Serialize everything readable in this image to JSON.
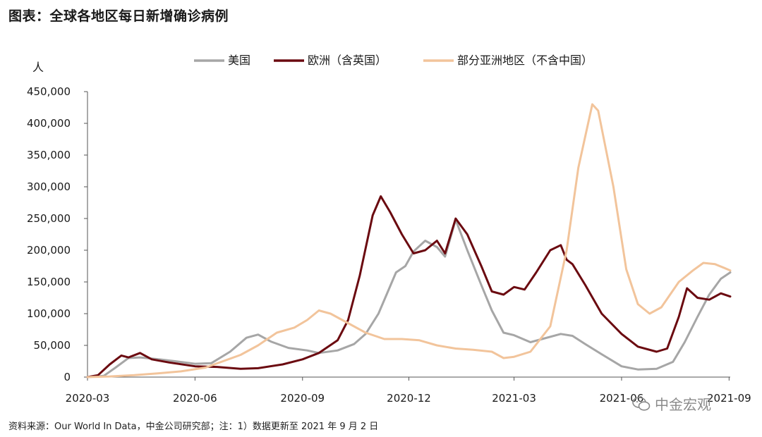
{
  "header": {
    "title": "图表：全球各地区每日新增确诊病例"
  },
  "footer": {
    "source": "资料来源：Our World In Data，中金公司研究部；注：1）数据更新至 2021 年 9 月 2 日"
  },
  "watermark": {
    "text": "中金宏观",
    "icon": "wechat-icon"
  },
  "colors": {
    "us": "#a6a6a6",
    "europe": "#6b0a10",
    "asia": "#f2c49b",
    "axis": "#555555"
  },
  "chart_data": {
    "type": "line",
    "title": "图表：全球各地区每日新增确诊病例",
    "ylabel": "人",
    "xlabel": "",
    "ylim": [
      0,
      450000
    ],
    "xlim": [
      "2020-03",
      "2021-09"
    ],
    "grid": false,
    "legend": "top",
    "x_ticks": [
      "2020-03",
      "2020-06",
      "2020-09",
      "2020-12",
      "2021-03",
      "2021-06",
      "2021-09"
    ],
    "y_ticks": [
      0,
      50000,
      100000,
      150000,
      200000,
      250000,
      300000,
      350000,
      400000,
      450000
    ],
    "y_tick_labels": [
      "0",
      "50,000",
      "100,000",
      "150,000",
      "200,000",
      "250,000",
      "300,000",
      "350,000",
      "400,000",
      "450,000"
    ],
    "series": [
      {
        "name": "美国",
        "color": "#a6a6a6",
        "points": [
          [
            "2020-03-01",
            0
          ],
          [
            "2020-03-15",
            2000
          ],
          [
            "2020-03-25",
            15000
          ],
          [
            "2020-04-05",
            30000
          ],
          [
            "2020-04-15",
            31000
          ],
          [
            "2020-05-01",
            28000
          ],
          [
            "2020-05-15",
            25000
          ],
          [
            "2020-06-01",
            21000
          ],
          [
            "2020-06-15",
            22000
          ],
          [
            "2020-07-01",
            40000
          ],
          [
            "2020-07-15",
            62000
          ],
          [
            "2020-07-25",
            67000
          ],
          [
            "2020-08-05",
            56000
          ],
          [
            "2020-08-20",
            46000
          ],
          [
            "2020-09-05",
            42000
          ],
          [
            "2020-09-15",
            38000
          ],
          [
            "2020-10-01",
            42000
          ],
          [
            "2020-10-15",
            52000
          ],
          [
            "2020-10-25",
            68000
          ],
          [
            "2020-11-05",
            100000
          ],
          [
            "2020-11-20",
            165000
          ],
          [
            "2020-11-28",
            175000
          ],
          [
            "2020-12-05",
            198000
          ],
          [
            "2020-12-15",
            215000
          ],
          [
            "2020-12-25",
            205000
          ],
          [
            "2021-01-01",
            190000
          ],
          [
            "2021-01-10",
            248000
          ],
          [
            "2021-01-20",
            200000
          ],
          [
            "2021-02-01",
            145000
          ],
          [
            "2021-02-10",
            105000
          ],
          [
            "2021-02-20",
            70000
          ],
          [
            "2021-03-01",
            66000
          ],
          [
            "2021-03-15",
            55000
          ],
          [
            "2021-03-25",
            60000
          ],
          [
            "2021-04-10",
            68000
          ],
          [
            "2021-04-20",
            65000
          ],
          [
            "2021-05-01",
            52000
          ],
          [
            "2021-05-15",
            36000
          ],
          [
            "2021-06-01",
            17000
          ],
          [
            "2021-06-15",
            12000
          ],
          [
            "2021-07-01",
            13000
          ],
          [
            "2021-07-15",
            24000
          ],
          [
            "2021-07-25",
            55000
          ],
          [
            "2021-08-05",
            95000
          ],
          [
            "2021-08-15",
            130000
          ],
          [
            "2021-08-25",
            155000
          ],
          [
            "2021-09-02",
            165000
          ]
        ]
      },
      {
        "name": "欧洲（含英国）",
        "color": "#6b0a10",
        "points": [
          [
            "2020-03-01",
            0
          ],
          [
            "2020-03-10",
            3000
          ],
          [
            "2020-03-20",
            20000
          ],
          [
            "2020-03-30",
            34000
          ],
          [
            "2020-04-05",
            31000
          ],
          [
            "2020-04-15",
            38000
          ],
          [
            "2020-04-25",
            28000
          ],
          [
            "2020-05-10",
            23000
          ],
          [
            "2020-06-01",
            17000
          ],
          [
            "2020-06-20",
            16000
          ],
          [
            "2020-07-10",
            13000
          ],
          [
            "2020-07-25",
            14000
          ],
          [
            "2020-08-15",
            20000
          ],
          [
            "2020-09-01",
            28000
          ],
          [
            "2020-09-15",
            38000
          ],
          [
            "2020-10-01",
            58000
          ],
          [
            "2020-10-10",
            90000
          ],
          [
            "2020-10-20",
            160000
          ],
          [
            "2020-10-31",
            255000
          ],
          [
            "2020-11-07",
            285000
          ],
          [
            "2020-11-15",
            260000
          ],
          [
            "2020-11-25",
            225000
          ],
          [
            "2020-12-05",
            195000
          ],
          [
            "2020-12-15",
            200000
          ],
          [
            "2020-12-25",
            215000
          ],
          [
            "2021-01-01",
            195000
          ],
          [
            "2021-01-10",
            250000
          ],
          [
            "2021-01-20",
            225000
          ],
          [
            "2021-02-01",
            175000
          ],
          [
            "2021-02-10",
            135000
          ],
          [
            "2021-02-20",
            130000
          ],
          [
            "2021-03-01",
            142000
          ],
          [
            "2021-03-10",
            138000
          ],
          [
            "2021-03-20",
            165000
          ],
          [
            "2021-04-01",
            200000
          ],
          [
            "2021-04-10",
            208000
          ],
          [
            "2021-04-15",
            185000
          ],
          [
            "2021-04-20",
            178000
          ],
          [
            "2021-05-01",
            145000
          ],
          [
            "2021-05-15",
            100000
          ],
          [
            "2021-06-01",
            68000
          ],
          [
            "2021-06-15",
            48000
          ],
          [
            "2021-07-01",
            40000
          ],
          [
            "2021-07-10",
            45000
          ],
          [
            "2021-07-20",
            95000
          ],
          [
            "2021-07-27",
            140000
          ],
          [
            "2021-08-05",
            125000
          ],
          [
            "2021-08-15",
            122000
          ],
          [
            "2021-08-25",
            132000
          ],
          [
            "2021-09-02",
            127000
          ]
        ]
      },
      {
        "name": "部分亚洲地区（不含中国）",
        "color": "#f2c49b",
        "points": [
          [
            "2020-03-01",
            0
          ],
          [
            "2020-03-20",
            1000
          ],
          [
            "2020-04-10",
            3000
          ],
          [
            "2020-05-01",
            6000
          ],
          [
            "2020-05-20",
            9000
          ],
          [
            "2020-06-10",
            15000
          ],
          [
            "2020-06-25",
            25000
          ],
          [
            "2020-07-10",
            35000
          ],
          [
            "2020-07-25",
            50000
          ],
          [
            "2020-08-10",
            70000
          ],
          [
            "2020-08-25",
            78000
          ],
          [
            "2020-09-05",
            90000
          ],
          [
            "2020-09-15",
            105000
          ],
          [
            "2020-09-25",
            100000
          ],
          [
            "2020-10-10",
            85000
          ],
          [
            "2020-10-25",
            70000
          ],
          [
            "2020-11-10",
            60000
          ],
          [
            "2020-11-25",
            60000
          ],
          [
            "2020-12-10",
            58000
          ],
          [
            "2020-12-25",
            50000
          ],
          [
            "2021-01-10",
            45000
          ],
          [
            "2021-01-25",
            43000
          ],
          [
            "2021-02-10",
            40000
          ],
          [
            "2021-02-20",
            30000
          ],
          [
            "2021-03-01",
            32000
          ],
          [
            "2021-03-15",
            40000
          ],
          [
            "2021-04-01",
            80000
          ],
          [
            "2021-04-15",
            200000
          ],
          [
            "2021-04-25",
            330000
          ],
          [
            "2021-05-07",
            430000
          ],
          [
            "2021-05-12",
            420000
          ],
          [
            "2021-05-25",
            300000
          ],
          [
            "2021-06-05",
            170000
          ],
          [
            "2021-06-15",
            115000
          ],
          [
            "2021-06-25",
            100000
          ],
          [
            "2021-07-05",
            110000
          ],
          [
            "2021-07-20",
            150000
          ],
          [
            "2021-08-01",
            168000
          ],
          [
            "2021-08-10",
            180000
          ],
          [
            "2021-08-20",
            178000
          ],
          [
            "2021-08-28",
            172000
          ],
          [
            "2021-09-02",
            168000
          ]
        ]
      }
    ]
  }
}
